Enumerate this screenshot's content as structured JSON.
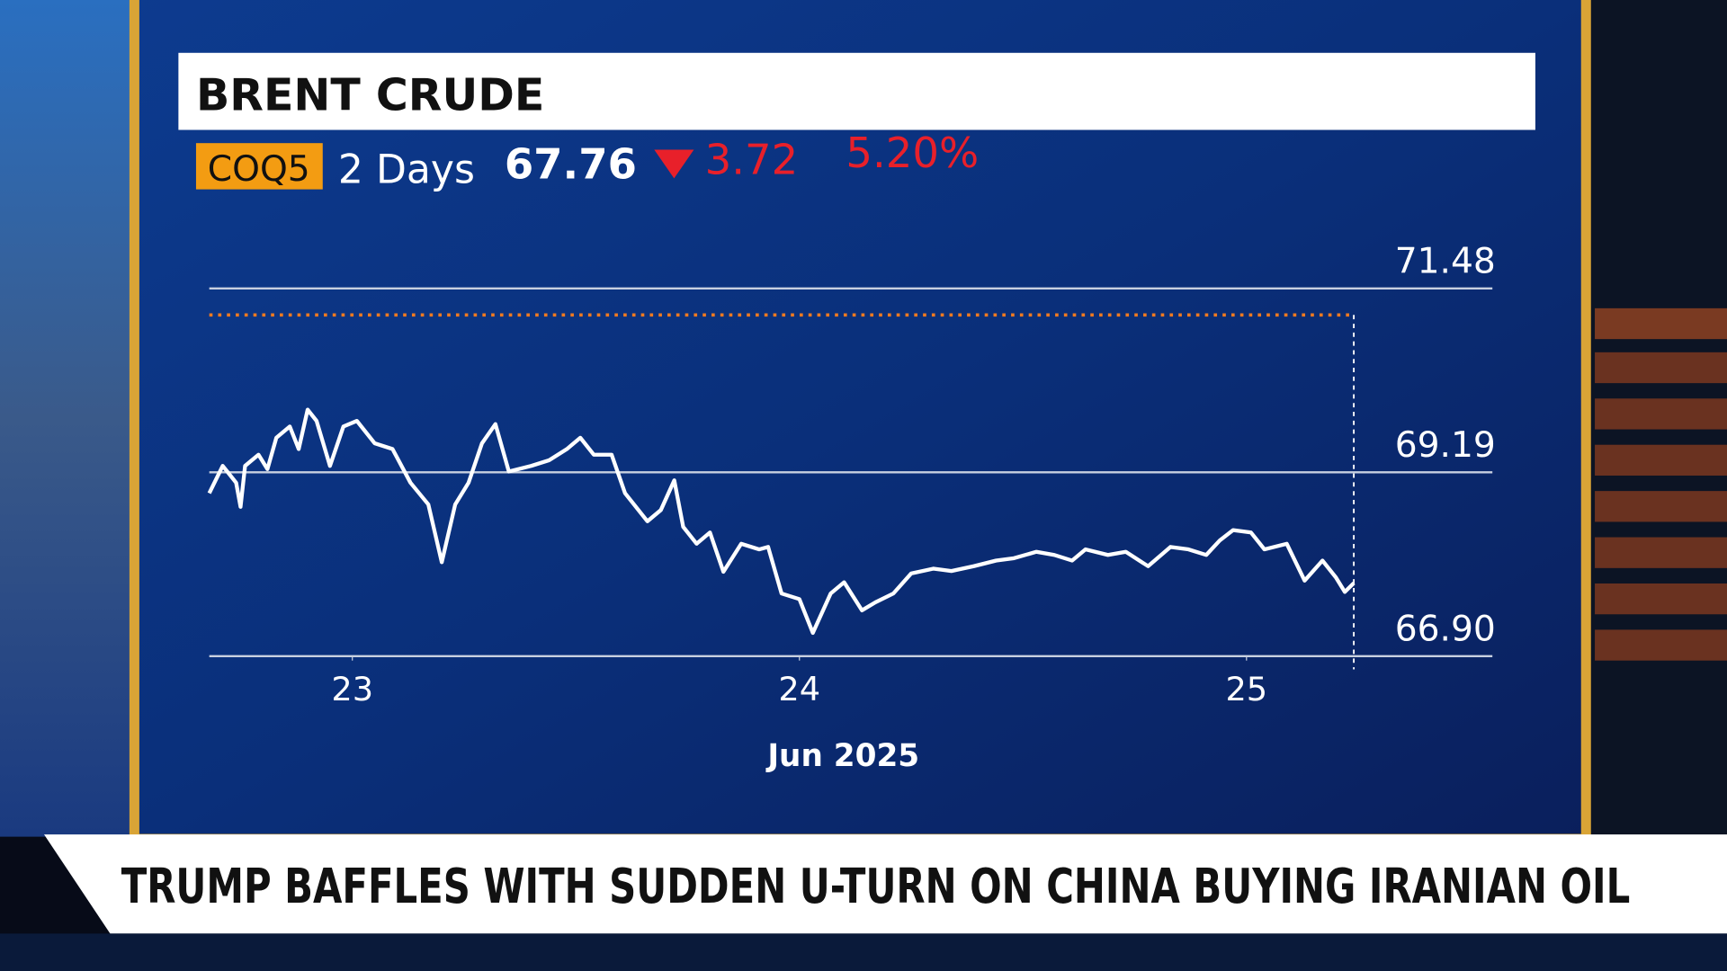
{
  "chart_data": {
    "type": "line",
    "title": "BRENT CRUDE",
    "symbol": "COQ5",
    "period": "2 Days",
    "price": 67.76,
    "change": 3.72,
    "change_pct": "5.20%",
    "x": [
      22.68,
      22.71,
      22.74,
      22.75,
      22.76,
      22.79,
      22.81,
      22.83,
      22.86,
      22.88,
      22.9,
      22.92,
      22.95,
      22.98,
      23.01,
      23.05,
      23.09,
      23.13,
      23.17,
      23.2,
      23.23,
      23.26,
      23.29,
      23.32,
      23.35,
      23.4,
      23.44,
      23.48,
      23.51,
      23.54,
      23.58,
      23.61,
      23.66,
      23.69,
      23.72,
      23.74,
      23.77,
      23.8,
      23.83,
      23.87,
      23.91,
      23.93,
      23.96,
      24.0,
      24.03,
      24.07,
      24.1,
      24.14,
      24.17,
      24.21,
      24.25,
      24.3,
      24.34,
      24.39,
      24.44,
      24.48,
      24.53,
      24.57,
      24.61,
      24.64,
      24.69,
      24.73,
      24.78,
      24.83,
      24.87,
      24.91,
      24.94,
      24.97,
      25.01,
      25.04,
      25.09,
      25.13,
      25.17,
      25.2,
      25.22,
      25.24
    ],
    "values": [
      68.93,
      69.27,
      69.06,
      68.76,
      69.27,
      69.41,
      69.23,
      69.62,
      69.76,
      69.48,
      69.97,
      69.83,
      69.27,
      69.76,
      69.83,
      69.55,
      69.48,
      69.06,
      68.79,
      68.07,
      68.79,
      69.06,
      69.55,
      69.79,
      69.2,
      69.27,
      69.34,
      69.48,
      69.62,
      69.41,
      69.41,
      68.93,
      68.58,
      68.72,
      69.09,
      68.51,
      68.3,
      68.44,
      67.95,
      68.3,
      68.23,
      68.26,
      67.68,
      67.61,
      67.19,
      67.68,
      67.82,
      67.47,
      67.57,
      67.68,
      67.93,
      67.99,
      67.96,
      68.02,
      68.09,
      68.12,
      68.2,
      68.16,
      68.09,
      68.23,
      68.16,
      68.2,
      68.02,
      68.26,
      68.23,
      68.16,
      68.34,
      68.47,
      68.44,
      68.23,
      68.3,
      67.84,
      68.09,
      67.88,
      67.7,
      67.81
    ],
    "color": "#ffffff",
    "xlabel": "Jun 2025",
    "xlim": [
      22.68,
      25.55
    ],
    "xticks": [
      23,
      24,
      25
    ],
    "ylim": [
      66.9,
      71.48
    ],
    "yticks": [
      {
        "value": 66.9,
        "label": "66.90"
      },
      69.19,
      71.48
    ],
    "grid": true,
    "reference_line": {
      "value": 71.15,
      "color": "#f07a20"
    }
  },
  "headline": "TRUMP BAFFLES WITH SUDDEN U-TURN ON CHINA BUYING IRANIAN OIL"
}
